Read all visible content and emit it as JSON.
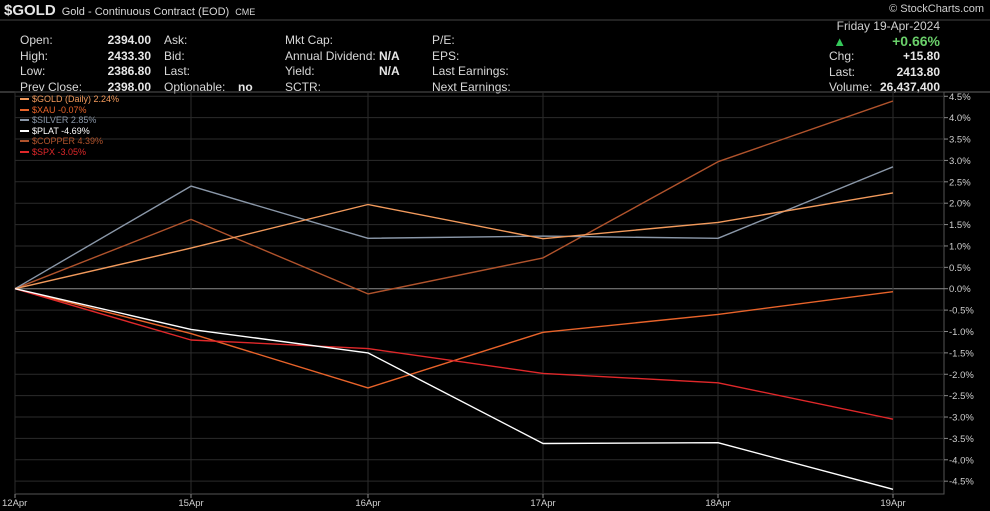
{
  "header": {
    "symbol": "$GOLD",
    "contract": "Gold - Continuous Contract (EOD)",
    "exchange": "CME",
    "logo_text": "© StockCharts.com"
  },
  "quote": {
    "open_label": "Open:",
    "open": "2394.00",
    "high_label": "High:",
    "high": "2433.30",
    "low_label": "Low:",
    "low": "2386.80",
    "prev_close_label": "Prev Close:",
    "prev_close": "2398.00",
    "ask_label": "Ask:",
    "bid_label": "Bid:",
    "last_label": "Last:",
    "optionable_label": "Optionable:",
    "optionable": "no",
    "mkt_cap_label": "Mkt Cap:",
    "annual_div_label": "Annual Dividend:",
    "annual_div": "N/A",
    "yield_label": "Yield:",
    "yield": "N/A",
    "sctr_label": "SCTR:",
    "pe_label": "P/E:",
    "eps_label": "EPS:",
    "last_earnings_label": "Last Earnings:",
    "next_earnings_label": "Next Earnings:",
    "date": "Friday 19-Apr-2024",
    "pct_change": "+0.66%",
    "chg_label": "Chg:",
    "chg": "+15.80",
    "last_price_label": "Last:",
    "last_price": "2413.80",
    "volume_label": "Volume:",
    "volume": "26,437,400"
  },
  "colors": {
    "background": "#000000",
    "grid": "#2b2b2b",
    "axis_text": "#cfcfcf",
    "up_green": "#34c85a"
  },
  "chart_data": {
    "type": "line",
    "x": [
      "12Apr",
      "15Apr",
      "16Apr",
      "17Apr",
      "18Apr",
      "19Apr"
    ],
    "ylim": [
      -4.8,
      4.6
    ],
    "yticks": [
      "4.5%",
      "4.0%",
      "3.5%",
      "3.0%",
      "2.5%",
      "2.0%",
      "1.5%",
      "1.0%",
      "0.5%",
      "0.0%",
      "-0.5%",
      "-1.0%",
      "-1.5%",
      "-2.0%",
      "-2.5%",
      "-3.0%",
      "-3.5%",
      "-4.0%",
      "-4.5%"
    ],
    "ytick_values": [
      4.5,
      4.0,
      3.5,
      3.0,
      2.5,
      2.0,
      1.5,
      1.0,
      0.5,
      0.0,
      -0.5,
      -1.0,
      -1.5,
      -2.0,
      -2.5,
      -3.0,
      -3.5,
      -4.0,
      -4.5
    ],
    "grid": true,
    "legend_position": "top-left",
    "series": [
      {
        "name": "$GOLD (Daily) 2.24%",
        "color": "#f29a5c",
        "values": [
          0,
          0.95,
          1.97,
          1.17,
          1.55,
          2.24
        ]
      },
      {
        "name": "$XAU -0.07%",
        "color": "#e8632a",
        "values": [
          0,
          -1.05,
          -2.32,
          -1.02,
          -0.6,
          -0.07
        ]
      },
      {
        "name": "$SILVER 2.85%",
        "color": "#8a97a8",
        "values": [
          0,
          2.4,
          1.18,
          1.23,
          1.18,
          2.85
        ]
      },
      {
        "name": "$PLAT -4.69%",
        "color": "#ffffff",
        "values": [
          0,
          -0.95,
          -1.5,
          -3.62,
          -3.6,
          -4.69
        ]
      },
      {
        "name": "$COPPER 4.39%",
        "color": "#b0532c",
        "values": [
          0,
          1.62,
          -0.12,
          0.72,
          2.97,
          4.39
        ]
      },
      {
        "name": "$SPX -3.05%",
        "color": "#e0282a",
        "values": [
          0,
          -1.2,
          -1.4,
          -1.98,
          -2.2,
          -3.05
        ]
      }
    ]
  }
}
